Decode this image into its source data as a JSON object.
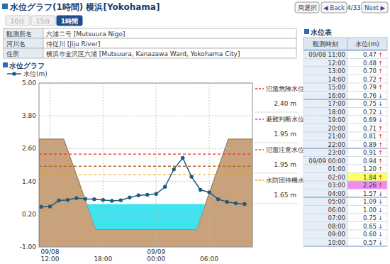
{
  "header": {
    "title": "水位グラフ(1時間) 横浜[Yokohama]",
    "buttons": [
      "局選択",
      "◀ Back",
      "4/33",
      "Next ▶"
    ]
  },
  "tabs": {
    "items": [
      "10分",
      "15分",
      "1時間"
    ],
    "active": 2
  },
  "info": {
    "rows": [
      [
        "観測所名",
        "六浦二号 [Mutsuura Nigo]"
      ],
      [
        "河川名",
        "侍従川 [Jiju River]"
      ],
      [
        "住所",
        "横浜市金沢区六浦 [Mutsuura, Kanazawa Ward, Yokohama City]"
      ]
    ]
  },
  "chart_data": {
    "type": "line",
    "title": "水位グラフ",
    "categories": [
      null,
      "09/08\n12:00",
      null,
      null,
      null,
      null,
      null,
      "18:00",
      null,
      null,
      null,
      null,
      null,
      "09/09\n00:00",
      null,
      null,
      null,
      null,
      null,
      "06:00",
      null,
      null,
      null,
      null
    ],
    "series": [
      {
        "name": "水位(m)",
        "color": "#1d5c80",
        "marker": "circle",
        "line_style": "solid",
        "values": [
          0.47,
          0.48,
          0.7,
          0.72,
          0.79,
          0.76,
          0.75,
          0.72,
          0.69,
          0.71,
          0.81,
          0.89,
          0.91,
          0.94,
          1.2,
          1.84,
          2.26,
          1.57,
          1.09,
          1.0,
          0.75,
          0.65,
          0.6,
          0.57
        ]
      }
    ],
    "ylim": [
      -1,
      5
    ],
    "yticks": [
      {
        "value": 5,
        "label": "5.00"
      },
      {
        "value": 3.8,
        "label": "3.80"
      },
      {
        "value": 2.6,
        "label": "2.60"
      },
      {
        "value": 1.4,
        "label": "1.40"
      },
      {
        "value": 0.2,
        "label": "0.20"
      },
      {
        "value": -1,
        "label": "-1.00"
      }
    ],
    "grid": true,
    "legend": "top",
    "thresholds": [
      {
        "name": "氾濫危険水位",
        "value": 2.4,
        "label": "2.40 m",
        "color": "#e3302b",
        "line_style": "dashed"
      },
      {
        "name": "避難判断水位",
        "value": 1.95,
        "label": "1.95 m",
        "color": "#d23fd2",
        "line_style": "dashed"
      },
      {
        "name": "氾濫注意水位",
        "value": 1.95,
        "label": "1.95 m",
        "color": "#b5651d",
        "line_style": "dashed"
      },
      {
        "name": "水防団待機水位",
        "value": 1.65,
        "label": "1.65 m",
        "color": "#e6a317",
        "line_style": "dashed"
      }
    ],
    "cross_section": {
      "bank_top": 2.95,
      "riverbed": -0.35,
      "ground_color": "#c9a27c",
      "water_color": "#3fe3f0"
    }
  },
  "table": {
    "title": "水位表",
    "columns": [
      "観測時刻",
      "水位(m)"
    ],
    "trend_colors": {
      "↑": "#e0302a",
      "↓": "#2a5db0"
    },
    "rows": [
      {
        "time": "09/08 11:00",
        "level": "0.47",
        "trend": "↑"
      },
      {
        "time": "12:00",
        "level": "0.48",
        "trend": "↑"
      },
      {
        "time": "13:00",
        "level": "0.70",
        "trend": "↑"
      },
      {
        "time": "14:00",
        "level": "0.72",
        "trend": "↑"
      },
      {
        "time": "15:00",
        "level": "0.79",
        "trend": "↑"
      },
      {
        "time": "16:00",
        "level": "0.76",
        "trend": "↓"
      },
      {
        "time": "17:00",
        "level": "0.75",
        "trend": "↓"
      },
      {
        "time": "18:00",
        "level": "0.72",
        "trend": "↓"
      },
      {
        "time": "19:00",
        "level": "0.69",
        "trend": "↓"
      },
      {
        "time": "20:00",
        "level": "0.71",
        "trend": "↑"
      },
      {
        "time": "21:00",
        "level": "0.81",
        "trend": "↑"
      },
      {
        "time": "22:00",
        "level": "0.89",
        "trend": "↑"
      },
      {
        "time": "23:00",
        "level": "0.91",
        "trend": "↑"
      },
      {
        "time": "09/09 00:00",
        "level": "0.94",
        "trend": "↑"
      },
      {
        "time": "01:00",
        "level": "1.20",
        "trend": "↑"
      },
      {
        "time": "02:00",
        "level": "1.84",
        "trend": "↑",
        "color": "#ffff66"
      },
      {
        "time": "03:00",
        "level": "2.26",
        "trend": "↑",
        "color": "#f08cf0"
      },
      {
        "time": "04:00",
        "level": "1.57",
        "trend": "↓"
      },
      {
        "time": "05:00",
        "level": "1.09",
        "trend": "↓"
      },
      {
        "time": "06:00",
        "level": "1.00",
        "trend": "↓"
      },
      {
        "time": "07:00",
        "level": "0.75",
        "trend": "↓"
      },
      {
        "time": "08:00",
        "level": "0.65",
        "trend": "↓"
      },
      {
        "time": "09:00",
        "level": "0.60",
        "trend": "↓"
      },
      {
        "time": "10:00",
        "level": "0.57",
        "trend": "↓"
      }
    ]
  }
}
